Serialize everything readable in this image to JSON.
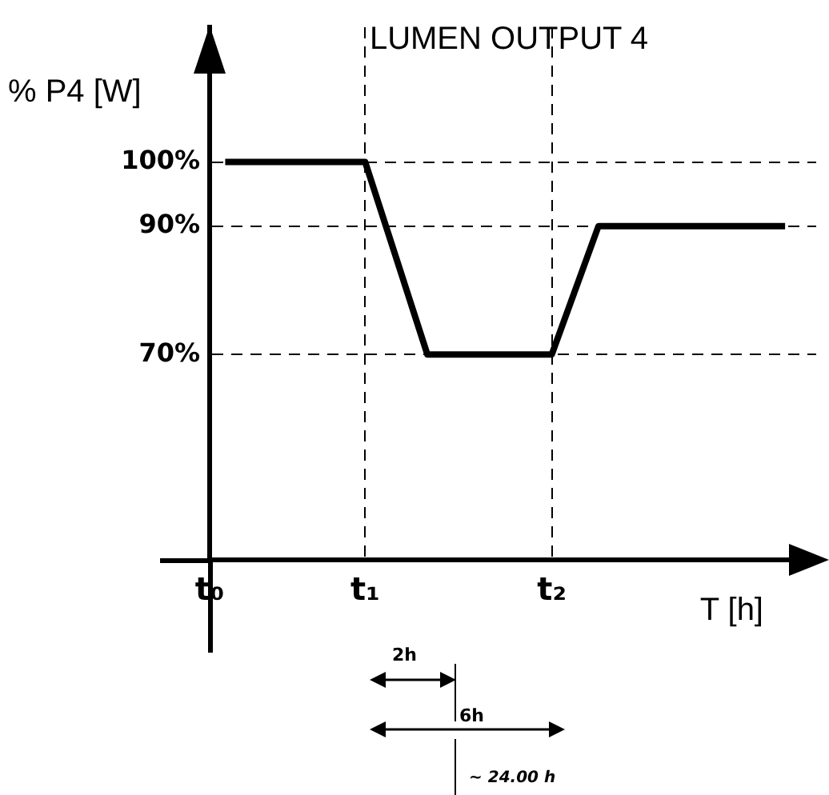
{
  "chart_data": {
    "type": "line",
    "title": "LUMEN OUTPUT 4",
    "xlabel": "T [h]",
    "ylabel": "% P4 [W]",
    "categories": [
      "t₀",
      null,
      null,
      null,
      null,
      null,
      null,
      null,
      null,
      null,
      "t₁",
      null,
      null,
      null,
      null,
      null,
      null,
      null,
      null,
      null,
      null,
      null,
      "t₂",
      null,
      null,
      null,
      null,
      null,
      null,
      null,
      null,
      null,
      null,
      null,
      null,
      null,
      null,
      null,
      null,
      null
    ],
    "series": [
      {
        "color": "#000000",
        "values": [
          null,
          100,
          null,
          null,
          null,
          null,
          null,
          null,
          null,
          null,
          100,
          null,
          null,
          null,
          70,
          null,
          null,
          null,
          null,
          null,
          null,
          null,
          70,
          null,
          null,
          90,
          null,
          null,
          null,
          null,
          null,
          null,
          null,
          null,
          null,
          null,
          null,
          90,
          null,
          null
        ]
      }
    ],
    "ylim": [
      38,
      121
    ],
    "yticks": [
      {
        "value": 70,
        "label": "70%"
      },
      {
        "value": 90,
        "label": "90%"
      },
      {
        "value": 100,
        "label": "100%"
      }
    ],
    "grid": true,
    "legend": false,
    "marker": "none",
    "line_style": "solid",
    "annotations": [
      "2h",
      "6h",
      "~ 24.00 h"
    ]
  }
}
